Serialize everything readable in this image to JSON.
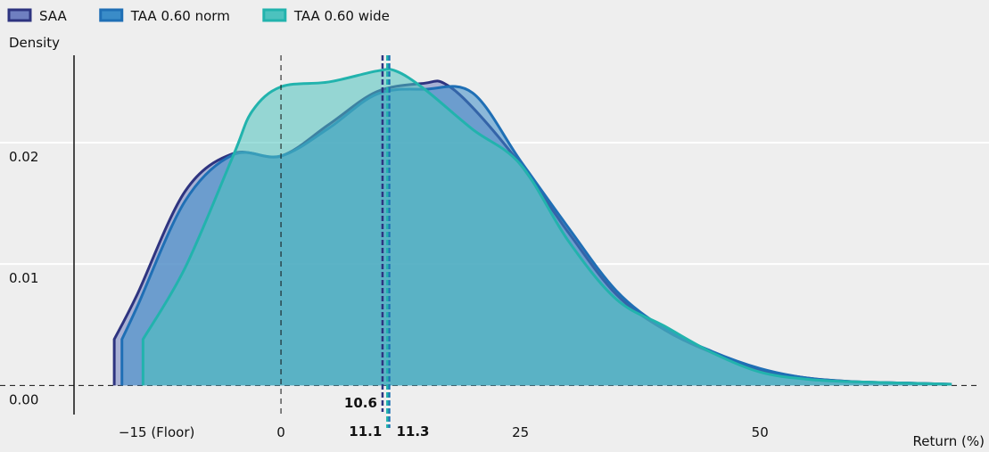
{
  "chart_data": {
    "type": "density",
    "y_label": "Density",
    "x_label": "Return (%)",
    "xlim": [
      -21.6,
      73.9
    ],
    "ylim": [
      -0.0024,
      0.0272
    ],
    "xticks": [
      {
        "value": -15,
        "label": "−15 (Floor)"
      },
      0,
      25,
      50
    ],
    "yticks": [
      {
        "value": 0,
        "label": "0.00"
      },
      0.01,
      0.02
    ],
    "grid": true,
    "legend": "top-left",
    "series": [
      {
        "name": "SAA",
        "color": "#2e3480",
        "fill": "#6f7fc0",
        "mean": 10.6,
        "x": [
          -17.4,
          -17.4,
          -15,
          -10,
          -5,
          0,
          5,
          10,
          15,
          17,
          20,
          25,
          30,
          35,
          40,
          45,
          50,
          55,
          60,
          65,
          70
        ],
        "values": [
          0,
          0.0038,
          0.0075,
          0.016,
          0.0191,
          0.0189,
          0.0215,
          0.0242,
          0.0249,
          0.0249,
          0.0229,
          0.0182,
          0.0126,
          0.0075,
          0.0046,
          0.0027,
          0.0013,
          0.0006,
          0.0003,
          0.0002,
          0.0001
        ]
      },
      {
        "name": "TAA 0.60 norm",
        "color": "#1f6fb5",
        "fill": "#3a8cc8",
        "mean": 11.3,
        "x": [
          -16.6,
          -16.6,
          -15,
          -10,
          -5,
          0,
          5,
          10,
          15,
          20,
          25,
          30,
          35,
          40,
          45,
          50,
          55,
          60,
          65,
          70
        ],
        "values": [
          0,
          0.0038,
          0.0065,
          0.0152,
          0.019,
          0.0189,
          0.0212,
          0.024,
          0.0244,
          0.0241,
          0.0185,
          0.013,
          0.0078,
          0.0047,
          0.0028,
          0.0014,
          0.0006,
          0.0003,
          0.0002,
          0.0001
        ]
      },
      {
        "name": "TAA 0.60 wide",
        "color": "#22b3ad",
        "fill": "#4cc2be",
        "mean": 11.1,
        "x": [
          -14.4,
          -14.4,
          -10,
          -5,
          -3,
          0,
          5,
          10,
          12,
          15,
          20,
          25,
          30,
          35,
          40,
          45,
          50,
          55,
          60,
          70
        ],
        "values": [
          0,
          0.0038,
          0.0097,
          0.0189,
          0.0226,
          0.0246,
          0.025,
          0.0259,
          0.0259,
          0.0244,
          0.0211,
          0.0182,
          0.0119,
          0.0071,
          0.0049,
          0.0027,
          0.0011,
          0.0005,
          0.0003,
          0.0001
        ]
      }
    ]
  }
}
